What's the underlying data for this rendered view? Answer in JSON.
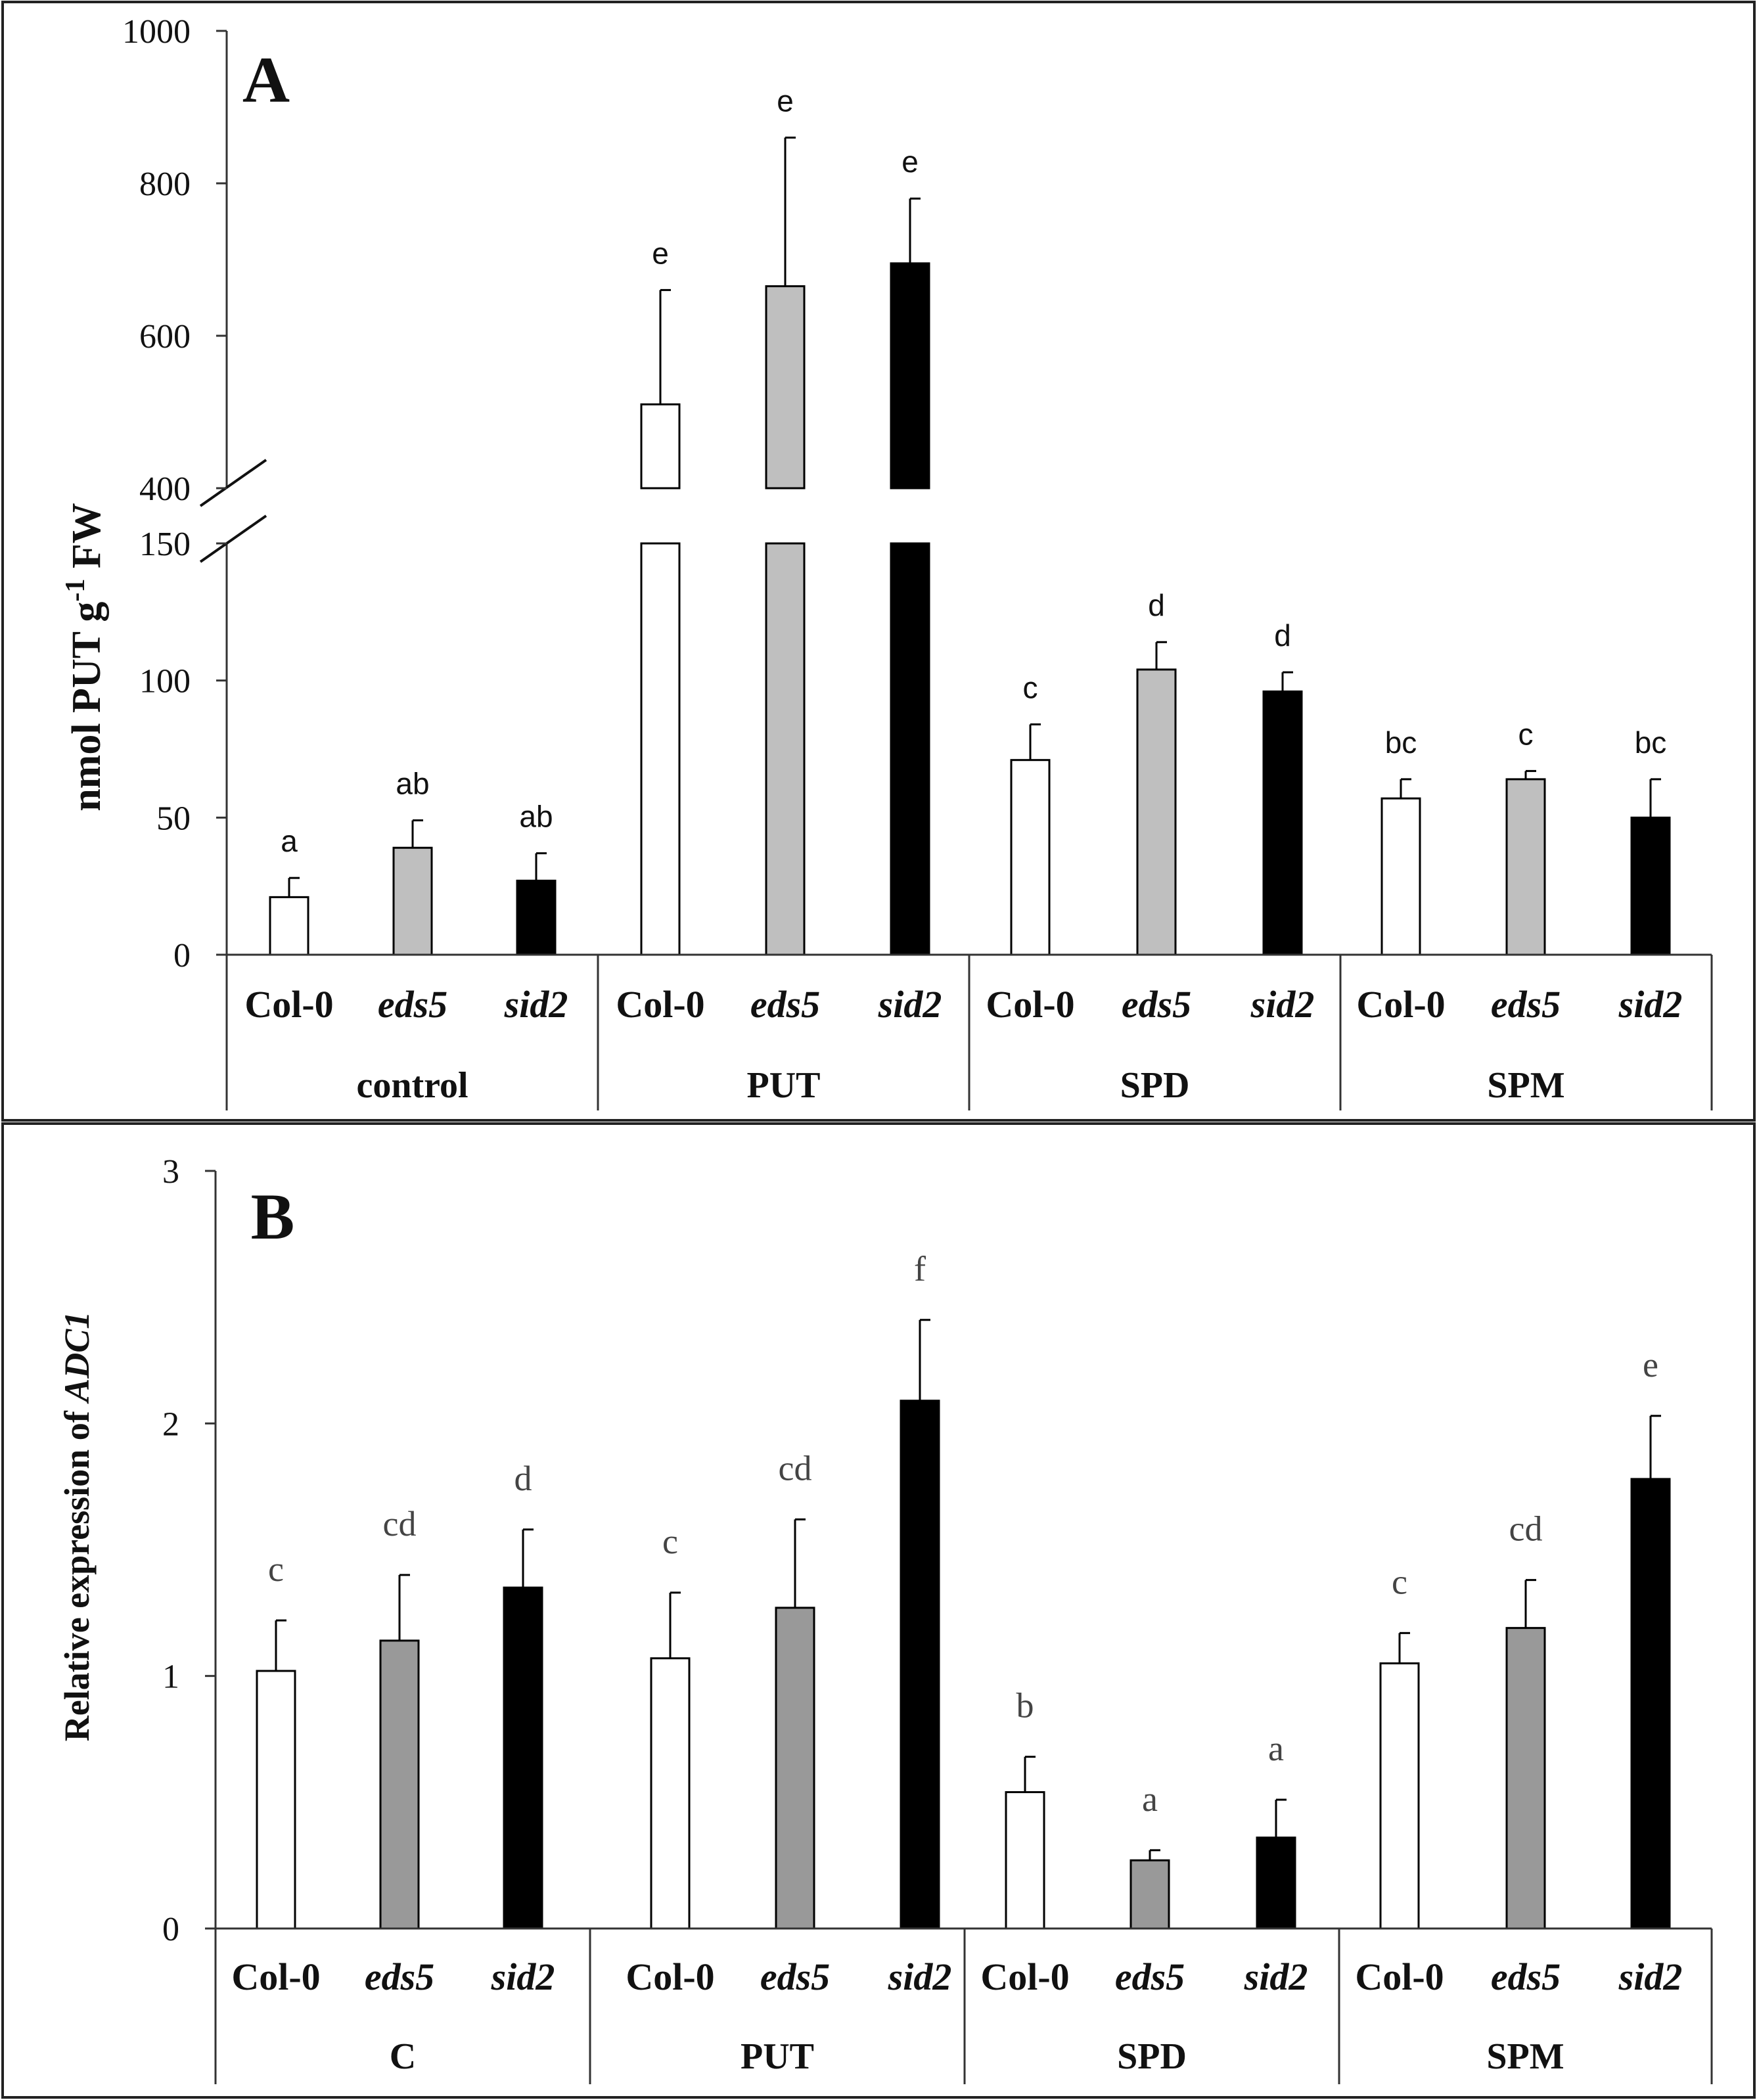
{
  "chart_data": [
    {
      "panel": "A",
      "type": "bar",
      "ylabel_main": "nmol PUT  g",
      "ylabel_sup": "-1",
      "ylabel_tail": " FW",
      "y_broken_axis": true,
      "ylim_lower": [
        0,
        150
      ],
      "ylim_upper": [
        400,
        1000
      ],
      "lower_ticks": [
        "0",
        "50",
        "100",
        "150"
      ],
      "upper_ticks": [
        "400",
        "600",
        "800",
        "1000"
      ],
      "genotypes": [
        "Col-0",
        "eds5",
        "sid2"
      ],
      "genotype_fill": [
        "#ffffff",
        "#bfbfbf",
        "#000000"
      ],
      "groups": [
        {
          "name": "control",
          "values": [
            21,
            39,
            27
          ],
          "errors": [
            7,
            10,
            10
          ],
          "letters": [
            "a",
            "ab",
            "ab"
          ]
        },
        {
          "name": "PUT",
          "values": [
            510,
            665,
            695
          ],
          "errors": [
            150,
            195,
            85
          ],
          "letters": [
            "e",
            "e",
            "e"
          ]
        },
        {
          "name": "SPD",
          "values": [
            71,
            104,
            96
          ],
          "errors": [
            13,
            10,
            7
          ],
          "letters": [
            "c",
            "d",
            "d"
          ]
        },
        {
          "name": "SPM",
          "values": [
            57,
            64,
            50
          ],
          "errors": [
            7,
            3,
            14
          ],
          "letters": [
            "bc",
            "c",
            "bc"
          ]
        }
      ]
    },
    {
      "panel": "B",
      "type": "bar",
      "ylabel_main": "Relative expression of ",
      "ylabel_gene": "ADC1",
      "ylim": [
        0,
        3
      ],
      "ticks": [
        "0",
        "1",
        "2",
        "3"
      ],
      "genotypes": [
        "Col-0",
        "eds5",
        "sid2"
      ],
      "genotype_fill": [
        "#ffffff",
        "#999999",
        "#000000"
      ],
      "groups": [
        {
          "name": "C",
          "values": [
            1.02,
            1.14,
            1.35
          ],
          "errors": [
            0.2,
            0.26,
            0.23
          ],
          "letters": [
            "c",
            "cd",
            "d"
          ]
        },
        {
          "name": "PUT",
          "values": [
            1.07,
            1.27,
            2.09
          ],
          "errors": [
            0.26,
            0.35,
            0.32
          ],
          "letters": [
            "c",
            "cd",
            "f"
          ]
        },
        {
          "name": "SPD",
          "values": [
            0.54,
            0.27,
            0.36
          ],
          "errors": [
            0.14,
            0.04,
            0.15
          ],
          "letters": [
            "b",
            "a",
            "a"
          ]
        },
        {
          "name": "SPM",
          "values": [
            1.05,
            1.19,
            1.78
          ],
          "errors": [
            0.12,
            0.19,
            0.25
          ],
          "letters": [
            "c",
            "cd",
            "e"
          ]
        }
      ]
    }
  ]
}
